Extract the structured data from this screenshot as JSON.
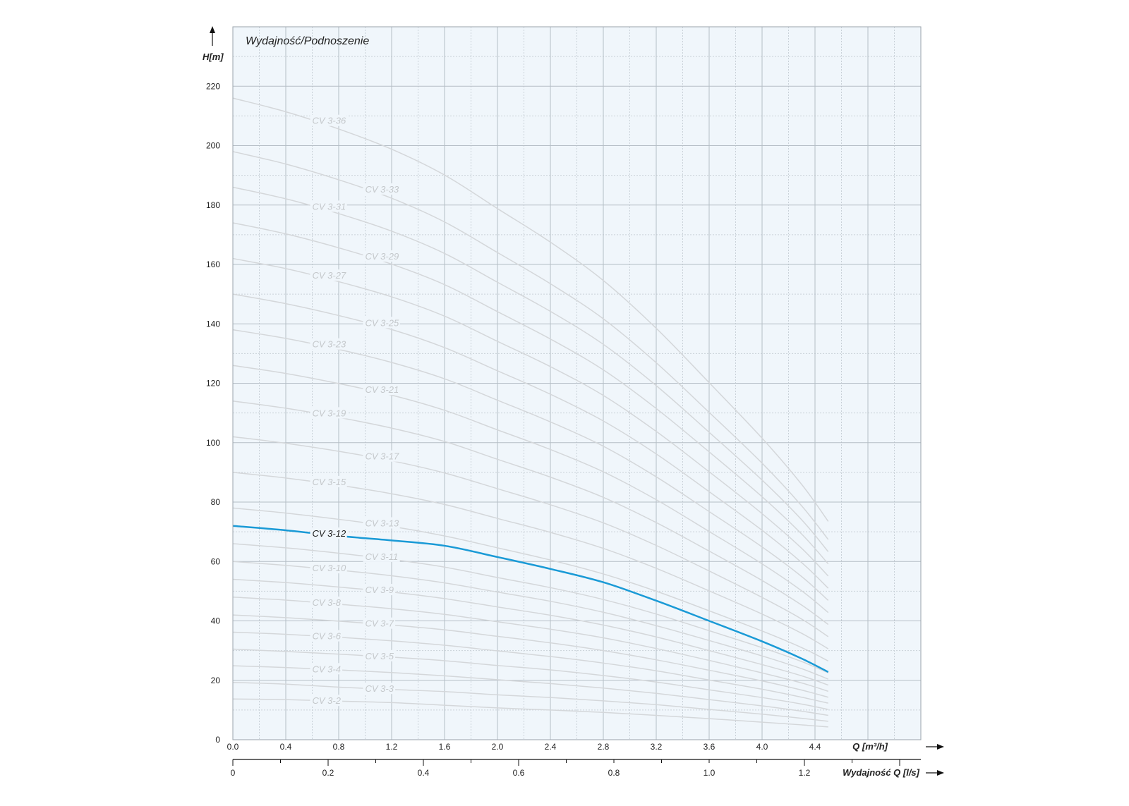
{
  "chart_data": {
    "type": "line",
    "title": "Wydajność/Podnoszenie",
    "ylabel": "H[m]",
    "xlabel": "Q [m³/h]",
    "x2label": "Wydajność Q [l/s]",
    "xlim": [
      0,
      5.2
    ],
    "ylim": [
      0,
      240
    ],
    "x_ticks": [
      0.0,
      0.4,
      0.8,
      1.2,
      1.6,
      2.0,
      2.4,
      2.8,
      3.2,
      3.6,
      4.0,
      4.4
    ],
    "x_tick_labels": [
      "0.0",
      "0.4",
      "0.8",
      "1.2",
      "1.6",
      "2.0",
      "2.4",
      "2.8",
      "3.2",
      "3.6",
      "4.0",
      "4.4"
    ],
    "y_ticks": [
      0,
      20,
      40,
      60,
      80,
      100,
      120,
      140,
      160,
      180,
      200,
      220
    ],
    "y_tick_labels": [
      "0",
      "20",
      "40",
      "60",
      "80",
      "100",
      "120",
      "140",
      "160",
      "180",
      "200",
      "220"
    ],
    "x2_ticks": [
      0,
      0.2,
      0.4,
      0.6,
      0.8,
      1.0,
      1.2
    ],
    "x2_tick_labels": [
      "0",
      "0.2",
      "0.4",
      "0.6",
      "0.8",
      "1.0",
      "1.2"
    ],
    "x2_per_x": 0.27778,
    "grid": true,
    "colors": {
      "highlight": "#1a9ad6",
      "curve": "#d4d7da",
      "plot_bg": "#f0f6fb",
      "grid_major": "#b5bec6",
      "grid_minor": "#c9d1d8",
      "curve_label": "#c4c8cb"
    },
    "highlight_series": "CV 3-12",
    "x": [
      0.0,
      0.4,
      0.8,
      1.2,
      1.6,
      2.0,
      2.4,
      2.8,
      3.2,
      3.6,
      4.0,
      4.3,
      4.5
    ],
    "series": [
      {
        "name": "CV 3-2",
        "label_x": 0.6,
        "values": [
          13.7,
          13.5,
          13.0,
          12.5,
          11.6,
          10.7,
          10.0,
          9.2,
          8.2,
          7.1,
          5.9,
          5.0,
          4.3
        ]
      },
      {
        "name": "CV 3-3",
        "label_x": 1.0,
        "values": [
          19.3,
          18.7,
          17.7,
          16.9,
          16.2,
          15.1,
          14.2,
          13.1,
          11.8,
          10.2,
          8.6,
          7.2,
          6.2
        ]
      },
      {
        "name": "CV 3-4",
        "label_x": 0.6,
        "values": [
          24.9,
          24.3,
          23.5,
          22.6,
          21.5,
          20.2,
          18.9,
          17.4,
          15.6,
          13.5,
          11.4,
          9.6,
          8.2
        ]
      },
      {
        "name": "CV 3-5",
        "label_x": 1.0,
        "values": [
          30.5,
          29.7,
          28.8,
          27.8,
          26.6,
          25.0,
          23.5,
          21.6,
          19.4,
          16.8,
          14.2,
          12.0,
          10.2
        ]
      },
      {
        "name": "CV 3-6",
        "label_x": 0.6,
        "values": [
          36.2,
          35.5,
          34.5,
          33.3,
          31.8,
          29.9,
          28.0,
          25.8,
          23.2,
          20.1,
          17.0,
          14.3,
          12.3
        ]
      },
      {
        "name": "CV 3-7",
        "label_x": 1.0,
        "values": [
          42.0,
          41.1,
          39.9,
          38.6,
          37.0,
          34.8,
          32.6,
          30.0,
          26.9,
          23.4,
          19.8,
          16.7,
          14.3
        ]
      },
      {
        "name": "CV 3-8",
        "label_x": 0.6,
        "values": [
          48.0,
          47.0,
          45.6,
          44.1,
          42.2,
          39.7,
          37.2,
          34.3,
          30.7,
          26.7,
          22.5,
          19.1,
          16.3
        ]
      },
      {
        "name": "CV 3-9",
        "label_x": 1.0,
        "values": [
          54.0,
          52.9,
          51.4,
          49.7,
          47.5,
          44.7,
          41.9,
          38.6,
          34.6,
          30.0,
          25.3,
          21.5,
          18.4
        ]
      },
      {
        "name": "CV 3-10",
        "label_x": 0.6,
        "values": [
          60.0,
          58.7,
          57.1,
          55.2,
          52.8,
          49.7,
          46.6,
          42.9,
          38.4,
          33.4,
          28.2,
          23.9,
          20.4
        ]
      },
      {
        "name": "CV 3-11",
        "label_x": 1.0,
        "values": [
          66.0,
          64.6,
          62.8,
          60.7,
          58.1,
          54.6,
          51.2,
          47.2,
          42.3,
          36.7,
          31.0,
          26.3,
          22.5
        ]
      },
      {
        "name": "CV 3-12",
        "label_x": 0.6,
        "values": [
          72.0,
          70.5,
          68.6,
          67.1,
          65.3,
          61.5,
          57.5,
          53.0,
          46.8,
          40.0,
          33.1,
          27.3,
          22.8
        ]
      },
      {
        "name": "CV 3-13",
        "label_x": 1.0,
        "values": [
          78.0,
          76.3,
          74.2,
          71.8,
          68.6,
          64.6,
          60.5,
          55.8,
          50.0,
          43.4,
          36.6,
          31.0,
          26.5
        ]
      },
      {
        "name": "CV 3-15",
        "label_x": 0.6,
        "values": [
          90.0,
          88.1,
          85.7,
          82.8,
          79.2,
          74.5,
          69.8,
          64.4,
          57.7,
          50.1,
          42.3,
          35.8,
          30.6
        ]
      },
      {
        "name": "CV 3-17",
        "label_x": 1.0,
        "values": [
          102.0,
          99.8,
          97.1,
          93.9,
          89.8,
          84.5,
          79.1,
          73.0,
          65.4,
          56.8,
          47.9,
          40.6,
          34.7
        ]
      },
      {
        "name": "CV 3-19",
        "label_x": 0.6,
        "values": [
          114.0,
          111.6,
          108.5,
          104.9,
          100.4,
          94.4,
          88.4,
          81.6,
          73.1,
          63.5,
          53.6,
          45.3,
          38.8
        ]
      },
      {
        "name": "CV 3-21",
        "label_x": 1.0,
        "values": [
          126.0,
          123.3,
          119.9,
          116.0,
          110.9,
          104.3,
          97.7,
          90.2,
          80.8,
          70.1,
          59.2,
          50.1,
          42.8
        ]
      },
      {
        "name": "CV 3-23",
        "label_x": 0.6,
        "values": [
          138.0,
          135.1,
          131.4,
          127.0,
          121.5,
          114.3,
          107.0,
          98.8,
          88.5,
          76.8,
          64.9,
          54.9,
          46.9
        ]
      },
      {
        "name": "CV 3-25",
        "label_x": 1.0,
        "values": [
          150.0,
          146.8,
          142.8,
          138.1,
          132.0,
          124.2,
          116.3,
          107.3,
          96.2,
          83.5,
          70.5,
          59.6,
          51.0
        ]
      },
      {
        "name": "CV 3-27",
        "label_x": 0.6,
        "values": [
          162.0,
          158.6,
          154.2,
          149.1,
          142.6,
          134.1,
          125.6,
          115.9,
          103.8,
          90.2,
          76.1,
          64.4,
          55.1
        ]
      },
      {
        "name": "CV 3-29",
        "label_x": 1.0,
        "values": [
          174.0,
          170.3,
          165.6,
          160.1,
          153.2,
          144.1,
          134.9,
          124.5,
          111.5,
          96.9,
          81.8,
          69.2,
          59.2
        ]
      },
      {
        "name": "CV 3-31",
        "label_x": 0.6,
        "values": [
          186.0,
          182.1,
          177.1,
          171.2,
          163.7,
          154.0,
          144.2,
          133.1,
          119.2,
          103.5,
          87.4,
          74.0,
          63.3
        ]
      },
      {
        "name": "CV 3-33",
        "label_x": 1.0,
        "values": [
          198.0,
          193.8,
          188.5,
          182.3,
          174.3,
          164.0,
          153.5,
          141.7,
          126.9,
          110.2,
          93.1,
          78.7,
          67.4
        ]
      },
      {
        "name": "CV 3-36",
        "label_x": 0.6,
        "values": [
          216.0,
          211.4,
          205.6,
          198.8,
          190.1,
          178.8,
          167.5,
          154.6,
          138.5,
          120.2,
          101.5,
          85.9,
          73.5
        ]
      }
    ]
  }
}
